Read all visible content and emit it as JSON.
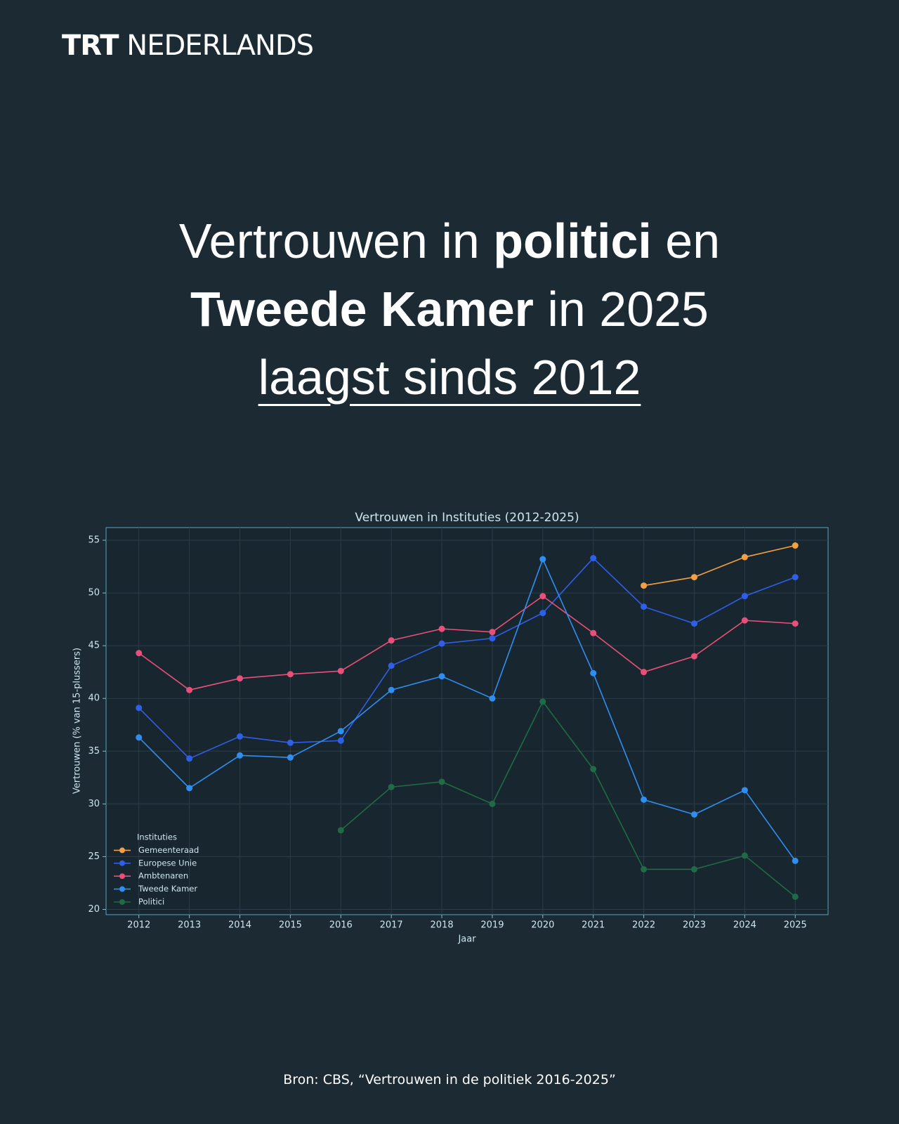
{
  "header": {
    "brand_bold": "TRT",
    "brand": "NEDERLANDS"
  },
  "headline": {
    "lines": [
      [
        {
          "text": "Vertrouwen in ",
          "style": "regular"
        },
        {
          "text": "politici",
          "style": "bold"
        },
        {
          "text": " en",
          "style": "regular"
        }
      ],
      [
        {
          "text": "Tweede Kamer",
          "style": "bold"
        },
        {
          "text": " in 2025",
          "style": "regular"
        }
      ],
      [
        {
          "text": "laagst sinds 2012",
          "style": "underline"
        }
      ]
    ]
  },
  "chart_data": {
    "type": "line",
    "title": "Vertrouwen in Instituties (2012-2025)",
    "x_label": "Jaar",
    "y_label": "Vertrouwen (% van 15-plussers)",
    "legend_title": "Instituties",
    "legend_position": "lower-left",
    "grid": true,
    "x": [
      2012,
      2013,
      2014,
      2015,
      2016,
      2017,
      2018,
      2019,
      2020,
      2021,
      2022,
      2023,
      2024,
      2025
    ],
    "xlim": [
      2011.35,
      2025.65
    ],
    "xticks": [
      2012,
      2013,
      2014,
      2015,
      2016,
      2017,
      2018,
      2019,
      2020,
      2021,
      2022,
      2023,
      2024,
      2025
    ],
    "ylim": [
      19.5,
      56.2
    ],
    "yticks": [
      20,
      25,
      30,
      35,
      40,
      45,
      50,
      55
    ],
    "series": [
      {
        "name": "Gemeenteraad",
        "color": "#f4a042",
        "values": [
          null,
          null,
          null,
          null,
          null,
          null,
          null,
          null,
          null,
          null,
          50.7,
          51.5,
          53.4,
          54.5
        ]
      },
      {
        "name": "Europese Unie",
        "color": "#2f5fe8",
        "values": [
          39.1,
          34.3,
          36.4,
          35.8,
          36.0,
          43.1,
          45.2,
          45.7,
          48.1,
          53.3,
          48.7,
          47.1,
          49.7,
          51.5
        ]
      },
      {
        "name": "Ambtenaren",
        "color": "#e8507a",
        "values": [
          44.3,
          40.8,
          41.9,
          42.3,
          42.6,
          45.5,
          46.6,
          46.3,
          49.7,
          46.2,
          42.5,
          44.0,
          47.4,
          47.1
        ]
      },
      {
        "name": "Tweede Kamer",
        "color": "#2f8ff0",
        "values": [
          36.3,
          31.5,
          34.6,
          34.4,
          36.9,
          40.8,
          42.1,
          40.0,
          53.2,
          42.4,
          30.4,
          29.0,
          31.3,
          24.6
        ]
      },
      {
        "name": "Politici",
        "color": "#1f6b45",
        "values": [
          null,
          null,
          null,
          null,
          27.5,
          31.6,
          32.1,
          30.0,
          39.7,
          33.3,
          23.8,
          23.8,
          25.1,
          21.2
        ]
      }
    ]
  },
  "source": "Bron: CBS, “Vertrouwen in de politiek 2016-2025”"
}
